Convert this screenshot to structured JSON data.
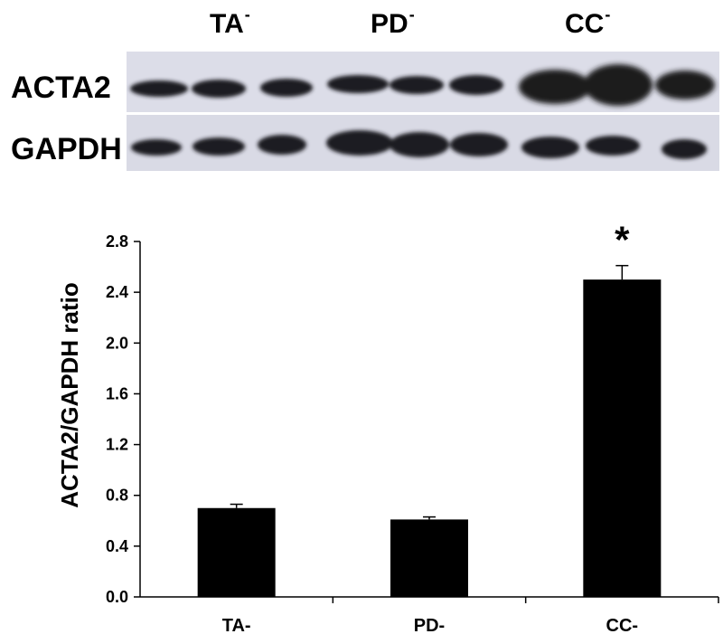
{
  "blot": {
    "lane_groups": [
      {
        "label": "TA",
        "superscript": "-"
      },
      {
        "label": "PD",
        "superscript": "-"
      },
      {
        "label": "CC",
        "superscript": "-"
      }
    ],
    "rows": [
      {
        "label": "ACTA2"
      },
      {
        "label": "GAPDH"
      }
    ],
    "background_color": "#dcdde8",
    "band_color": "#1e1e22"
  },
  "chart_data": {
    "type": "bar",
    "categories": [
      "TA-",
      "PD-",
      "CC-"
    ],
    "values": [
      0.7,
      0.61,
      2.5
    ],
    "errors": [
      0.03,
      0.02,
      0.11
    ],
    "annotations": [
      {
        "category": "CC-",
        "text": "*"
      }
    ],
    "ylabel": "ACTA2/GAPDH ratio",
    "xlabel": "",
    "ylim": [
      0,
      2.8
    ],
    "yticks": [
      "0.0",
      "0.4",
      "0.8",
      "1.2",
      "1.6",
      "2.0",
      "2.4",
      "2.8"
    ],
    "grid": false,
    "bar_color": "#000000"
  }
}
